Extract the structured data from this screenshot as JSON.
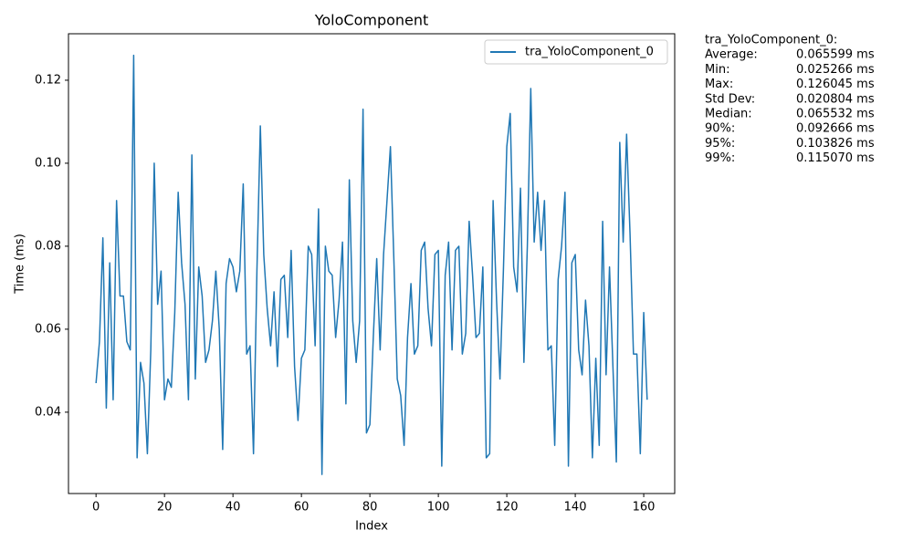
{
  "chart_data": {
    "type": "line",
    "title": "YoloComponent",
    "x_label": "Index",
    "y_label": "Time (ms)",
    "x": [
      0,
      1,
      2,
      3,
      4,
      5,
      6,
      7,
      8,
      9,
      10,
      11,
      12,
      13,
      14,
      15,
      16,
      17,
      18,
      19,
      20,
      21,
      22,
      23,
      24,
      25,
      26,
      27,
      28,
      29,
      30,
      31,
      32,
      33,
      34,
      35,
      36,
      37,
      38,
      39,
      40,
      41,
      42,
      43,
      44,
      45,
      46,
      47,
      48,
      49,
      50,
      51,
      52,
      53,
      54,
      55,
      56,
      57,
      58,
      59,
      60,
      61,
      62,
      63,
      64,
      65,
      66,
      67,
      68,
      69,
      70,
      71,
      72,
      73,
      74,
      75,
      76,
      77,
      78,
      79,
      80,
      81,
      82,
      83,
      84,
      85,
      86,
      87,
      88,
      89,
      90,
      91,
      92,
      93,
      94,
      95,
      96,
      97,
      98,
      99,
      100,
      101,
      102,
      103,
      104,
      105,
      106,
      107,
      108,
      109,
      110,
      111,
      112,
      113,
      114,
      115,
      116,
      117,
      118,
      119,
      120,
      121,
      122,
      123,
      124,
      125,
      126,
      127,
      128,
      129,
      130,
      131,
      132,
      133,
      134,
      135,
      136,
      137,
      138,
      139,
      140,
      141,
      142,
      143,
      144,
      145,
      146,
      147,
      148,
      149,
      150,
      151,
      152,
      153,
      154,
      155,
      156,
      157,
      158,
      159,
      160,
      161
    ],
    "series": [
      {
        "name": "tra_YoloComponent_0",
        "color": "#1f77b4",
        "values": [
          0.047,
          0.057,
          0.082,
          0.041,
          0.076,
          0.043,
          0.091,
          0.068,
          0.068,
          0.057,
          0.055,
          0.126,
          0.029,
          0.052,
          0.047,
          0.03,
          0.055,
          0.1,
          0.066,
          0.074,
          0.043,
          0.048,
          0.046,
          0.064,
          0.093,
          0.076,
          0.066,
          0.043,
          0.102,
          0.048,
          0.075,
          0.068,
          0.052,
          0.055,
          0.062,
          0.074,
          0.06,
          0.031,
          0.071,
          0.077,
          0.075,
          0.069,
          0.074,
          0.095,
          0.054,
          0.056,
          0.03,
          0.074,
          0.109,
          0.078,
          0.065,
          0.056,
          0.069,
          0.051,
          0.072,
          0.073,
          0.058,
          0.079,
          0.051,
          0.038,
          0.053,
          0.055,
          0.08,
          0.078,
          0.056,
          0.089,
          0.025,
          0.08,
          0.074,
          0.073,
          0.058,
          0.067,
          0.081,
          0.042,
          0.096,
          0.062,
          0.052,
          0.062,
          0.113,
          0.035,
          0.037,
          0.058,
          0.077,
          0.055,
          0.078,
          0.091,
          0.104,
          0.077,
          0.048,
          0.044,
          0.032,
          0.058,
          0.071,
          0.054,
          0.056,
          0.079,
          0.081,
          0.065,
          0.056,
          0.078,
          0.079,
          0.027,
          0.073,
          0.081,
          0.055,
          0.079,
          0.08,
          0.054,
          0.059,
          0.086,
          0.073,
          0.058,
          0.059,
          0.075,
          0.029,
          0.03,
          0.091,
          0.067,
          0.048,
          0.074,
          0.104,
          0.112,
          0.075,
          0.069,
          0.094,
          0.052,
          0.08,
          0.118,
          0.081,
          0.093,
          0.079,
          0.091,
          0.055,
          0.056,
          0.032,
          0.072,
          0.08,
          0.093,
          0.027,
          0.076,
          0.078,
          0.055,
          0.049,
          0.067,
          0.056,
          0.029,
          0.053,
          0.032,
          0.086,
          0.049,
          0.075,
          0.051,
          0.028,
          0.105,
          0.081,
          0.107,
          0.083,
          0.054,
          0.054,
          0.03,
          0.064,
          0.043
        ]
      }
    ],
    "xlim": [
      -8.05,
      169.05
    ],
    "xticks": [
      0,
      20,
      40,
      60,
      80,
      100,
      120,
      140,
      160
    ],
    "ylim": [
      0.0204,
      0.1312
    ],
    "yticks": [
      0.04,
      0.06,
      0.08,
      {
        "value": 0.1,
        "label": "0.10"
      },
      0.12
    ],
    "legend": "upper right",
    "stats": {
      "title": "tra_YoloComponent_0:",
      "rows": [
        [
          "Average:",
          "0.065599 ms"
        ],
        [
          "Min:",
          "0.025266 ms"
        ],
        [
          "Max:",
          "0.126045 ms"
        ],
        [
          "Std Dev:",
          "0.020804 ms"
        ],
        [
          "Median:",
          "0.065532 ms"
        ],
        [
          "90%:",
          "0.092666 ms"
        ],
        [
          "95%:",
          "0.103826 ms"
        ],
        [
          "99%:",
          "0.115070 ms"
        ]
      ]
    }
  }
}
